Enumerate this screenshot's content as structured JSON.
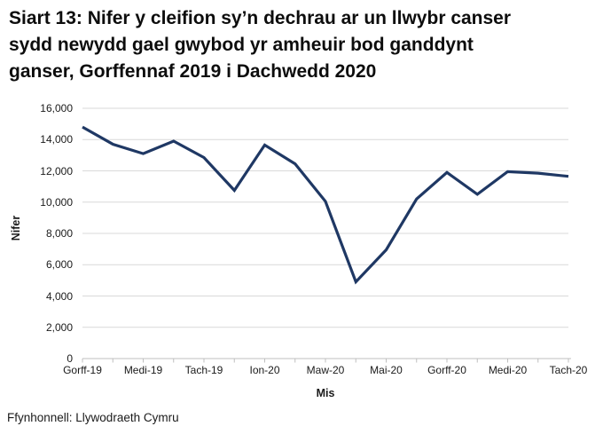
{
  "header": {
    "title_lines": [
      "Siart 13: Nifer y cleifion sy’n dechrau ar un llwybr canser",
      "sydd newydd gael gwybod yr amheuir bod ganddynt",
      "ganser, Gorffennaf 2019 i Dachwedd 2020"
    ]
  },
  "footer": {
    "source": "Ffynhonnell: Llywodraeth Cymru"
  },
  "chart_data": {
    "type": "line",
    "title": "Siart 13: Nifer y cleifion sy’n dechrau ar un llwybr canser sydd newydd gael gwybod yr amheuir bod ganddynt ganser, Gorffennaf 2019 i Dachwedd 2020",
    "xlabel": "Mis",
    "ylabel": "Nifer",
    "ylim": [
      0,
      16000
    ],
    "ytick_interval": 2000,
    "ytick_labels": [
      "0",
      "2,000",
      "4,000",
      "6,000",
      "8,000",
      "10,000",
      "12,000",
      "14,000",
      "16,000"
    ],
    "categories": [
      "Gorff-19",
      "",
      "Medi-19",
      "",
      "Tach-19",
      "",
      "Ion-20",
      "",
      "Maw-20",
      "",
      "Mai-20",
      "",
      "Gorff-20",
      "",
      "Medi-20",
      "",
      "Tach-20"
    ],
    "xtick_labels": [
      "Gorff-19",
      "Medi-19",
      "Tach-19",
      "Ion-20",
      "Maw-20",
      "Mai-20",
      "Gorff-20",
      "Medi-20",
      "Tach-20"
    ],
    "series": [
      {
        "name": "Nifer y cleifion",
        "values": [
          14800,
          13700,
          13100,
          13900,
          12850,
          10750,
          13650,
          12450,
          10050,
          4900,
          6950,
          10200,
          11900,
          10500,
          11950,
          11850,
          11650
        ]
      }
    ],
    "grid": true,
    "legend_position": "none",
    "line_color": "#1f3864",
    "gridline_color": "#d9d9d9",
    "axis_color": "#bfbfbf"
  }
}
